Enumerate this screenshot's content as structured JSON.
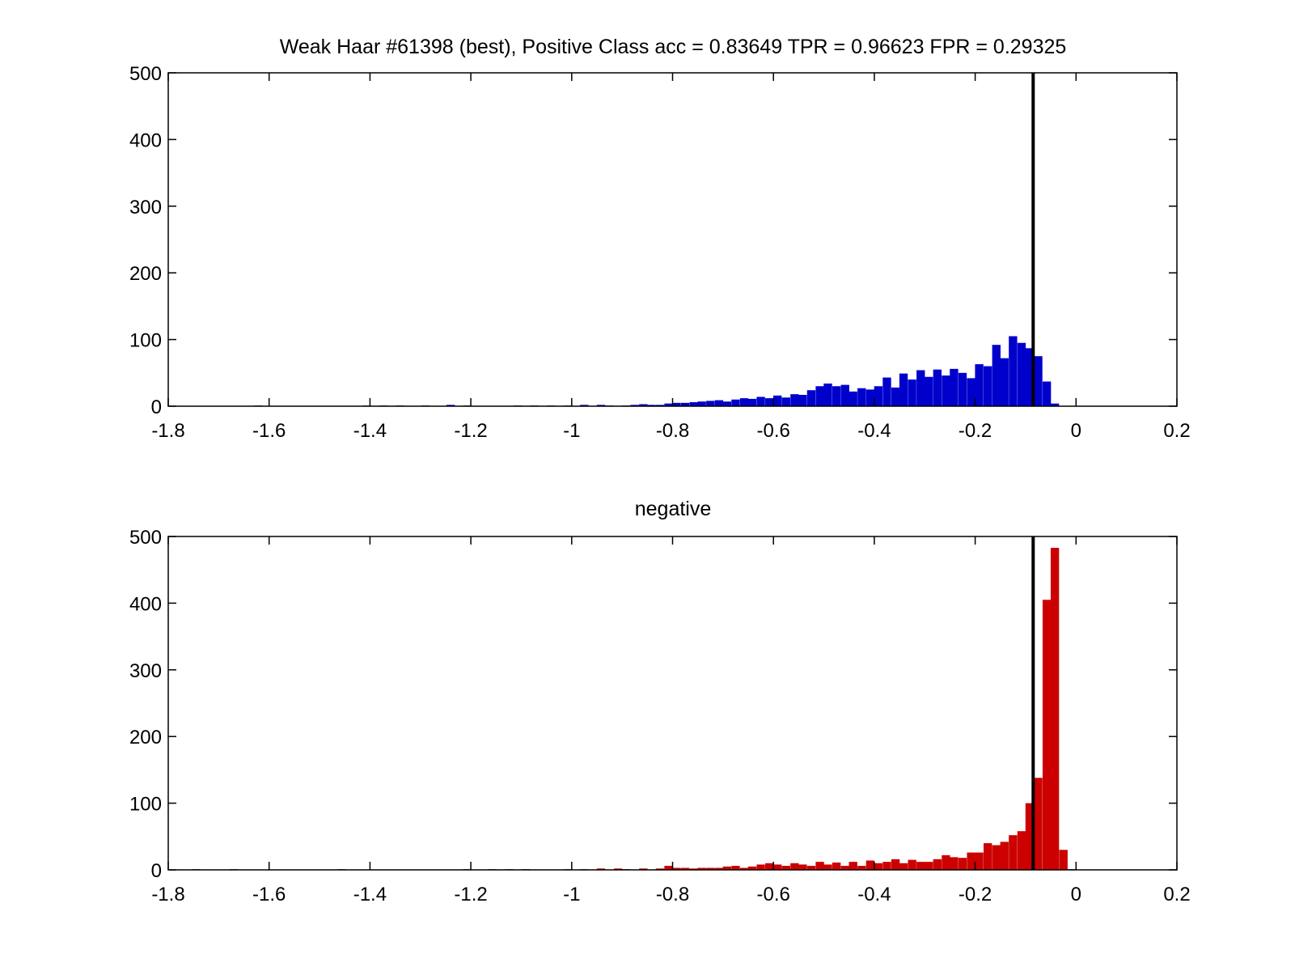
{
  "chart_data": [
    {
      "type": "bar",
      "title": "Weak Haar #61398 (best), Positive Class  acc = 0.83649 TPR = 0.96623 FPR = 0.29325",
      "xlabel": "",
      "ylabel": "",
      "xlim": [
        -1.8,
        0.2
      ],
      "ylim": [
        0,
        500
      ],
      "xticks": [
        "-1.8",
        "-1.6",
        "-1.4",
        "-1.2",
        "-1",
        "-0.8",
        "-0.6",
        "-0.4",
        "-0.2",
        "0",
        "0.2"
      ],
      "yticks": [
        "0",
        "100",
        "200",
        "300",
        "400",
        "500"
      ],
      "grid": false,
      "bar_color": "#0000cc",
      "threshold": -0.085,
      "bin_width": 0.0166,
      "series": [
        {
          "x": [
            -1.621,
            -1.406,
            -1.373,
            -1.34,
            -1.29,
            -1.24,
            -1.207,
            -1.107,
            -1.074,
            -1.041,
            -1.008,
            -0.975,
            -0.942,
            -0.925,
            -0.892,
            -0.875,
            -0.858,
            -0.842,
            -0.825,
            -0.808,
            -0.792,
            -0.775,
            -0.758,
            -0.742,
            -0.725,
            -0.708,
            -0.692,
            -0.675,
            -0.658,
            -0.642,
            -0.625,
            -0.608,
            -0.592,
            -0.575,
            -0.558,
            -0.542,
            -0.525,
            -0.508,
            -0.492,
            -0.475,
            -0.458,
            -0.442,
            -0.425,
            -0.408,
            -0.392,
            -0.375,
            -0.358,
            -0.342,
            -0.325,
            -0.308,
            -0.292,
            -0.275,
            -0.258,
            -0.242,
            -0.225,
            -0.208,
            -0.192,
            -0.175,
            -0.158,
            -0.142,
            -0.125,
            -0.108,
            -0.092,
            -0.075,
            -0.058,
            -0.042
          ],
          "values": [
            1,
            1,
            1,
            1,
            1,
            2,
            1,
            1,
            1,
            1,
            1,
            2,
            2,
            1,
            1,
            2,
            3,
            2,
            2,
            4,
            5,
            5,
            6,
            7,
            8,
            9,
            7,
            10,
            12,
            11,
            14,
            12,
            16,
            13,
            18,
            17,
            24,
            30,
            34,
            30,
            32,
            22,
            27,
            25,
            30,
            43,
            28,
            49,
            40,
            54,
            44,
            55,
            46,
            56,
            50,
            42,
            63,
            60,
            92,
            72,
            105,
            95,
            87,
            75,
            37,
            4
          ]
        }
      ]
    },
    {
      "type": "bar",
      "title": "negative",
      "xlabel": "",
      "ylabel": "",
      "xlim": [
        -1.8,
        0.2
      ],
      "ylim": [
        0,
        500
      ],
      "xticks": [
        "-1.8",
        "-1.6",
        "-1.4",
        "-1.2",
        "-1",
        "-0.8",
        "-0.6",
        "-0.4",
        "-0.2",
        "0",
        "0.2"
      ],
      "yticks": [
        "0",
        "100",
        "200",
        "300",
        "400",
        "500"
      ],
      "grid": false,
      "bar_color": "#cc0000",
      "threshold": -0.085,
      "bin_width": 0.0166,
      "series": [
        {
          "x": [
            -1.745,
            -1.67,
            -1.456,
            -1.207,
            -1.157,
            -1.124,
            -1.091,
            -1.008,
            -0.975,
            -0.942,
            -0.908,
            -0.892,
            -0.858,
            -0.825,
            -0.808,
            -0.792,
            -0.775,
            -0.758,
            -0.742,
            -0.725,
            -0.708,
            -0.692,
            -0.675,
            -0.658,
            -0.642,
            -0.625,
            -0.608,
            -0.592,
            -0.575,
            -0.558,
            -0.542,
            -0.525,
            -0.508,
            -0.492,
            -0.475,
            -0.458,
            -0.442,
            -0.425,
            -0.408,
            -0.392,
            -0.375,
            -0.358,
            -0.342,
            -0.325,
            -0.308,
            -0.292,
            -0.275,
            -0.258,
            -0.242,
            -0.225,
            -0.208,
            -0.192,
            -0.175,
            -0.158,
            -0.142,
            -0.125,
            -0.108,
            -0.092,
            -0.075,
            -0.058,
            -0.042,
            -0.025,
            -0.008
          ],
          "values": [
            1,
            1,
            1,
            1,
            1,
            1,
            1,
            1,
            1,
            2,
            2,
            1,
            2,
            2,
            6,
            3,
            3,
            2,
            3,
            3,
            3,
            5,
            6,
            3,
            5,
            8,
            10,
            8,
            6,
            10,
            8,
            6,
            12,
            8,
            11,
            6,
            12,
            6,
            14,
            10,
            12,
            16,
            10,
            15,
            12,
            12,
            16,
            22,
            19,
            18,
            26,
            26,
            40,
            37,
            42,
            52,
            58,
            100,
            138,
            405,
            483,
            30,
            1
          ]
        }
      ]
    }
  ]
}
